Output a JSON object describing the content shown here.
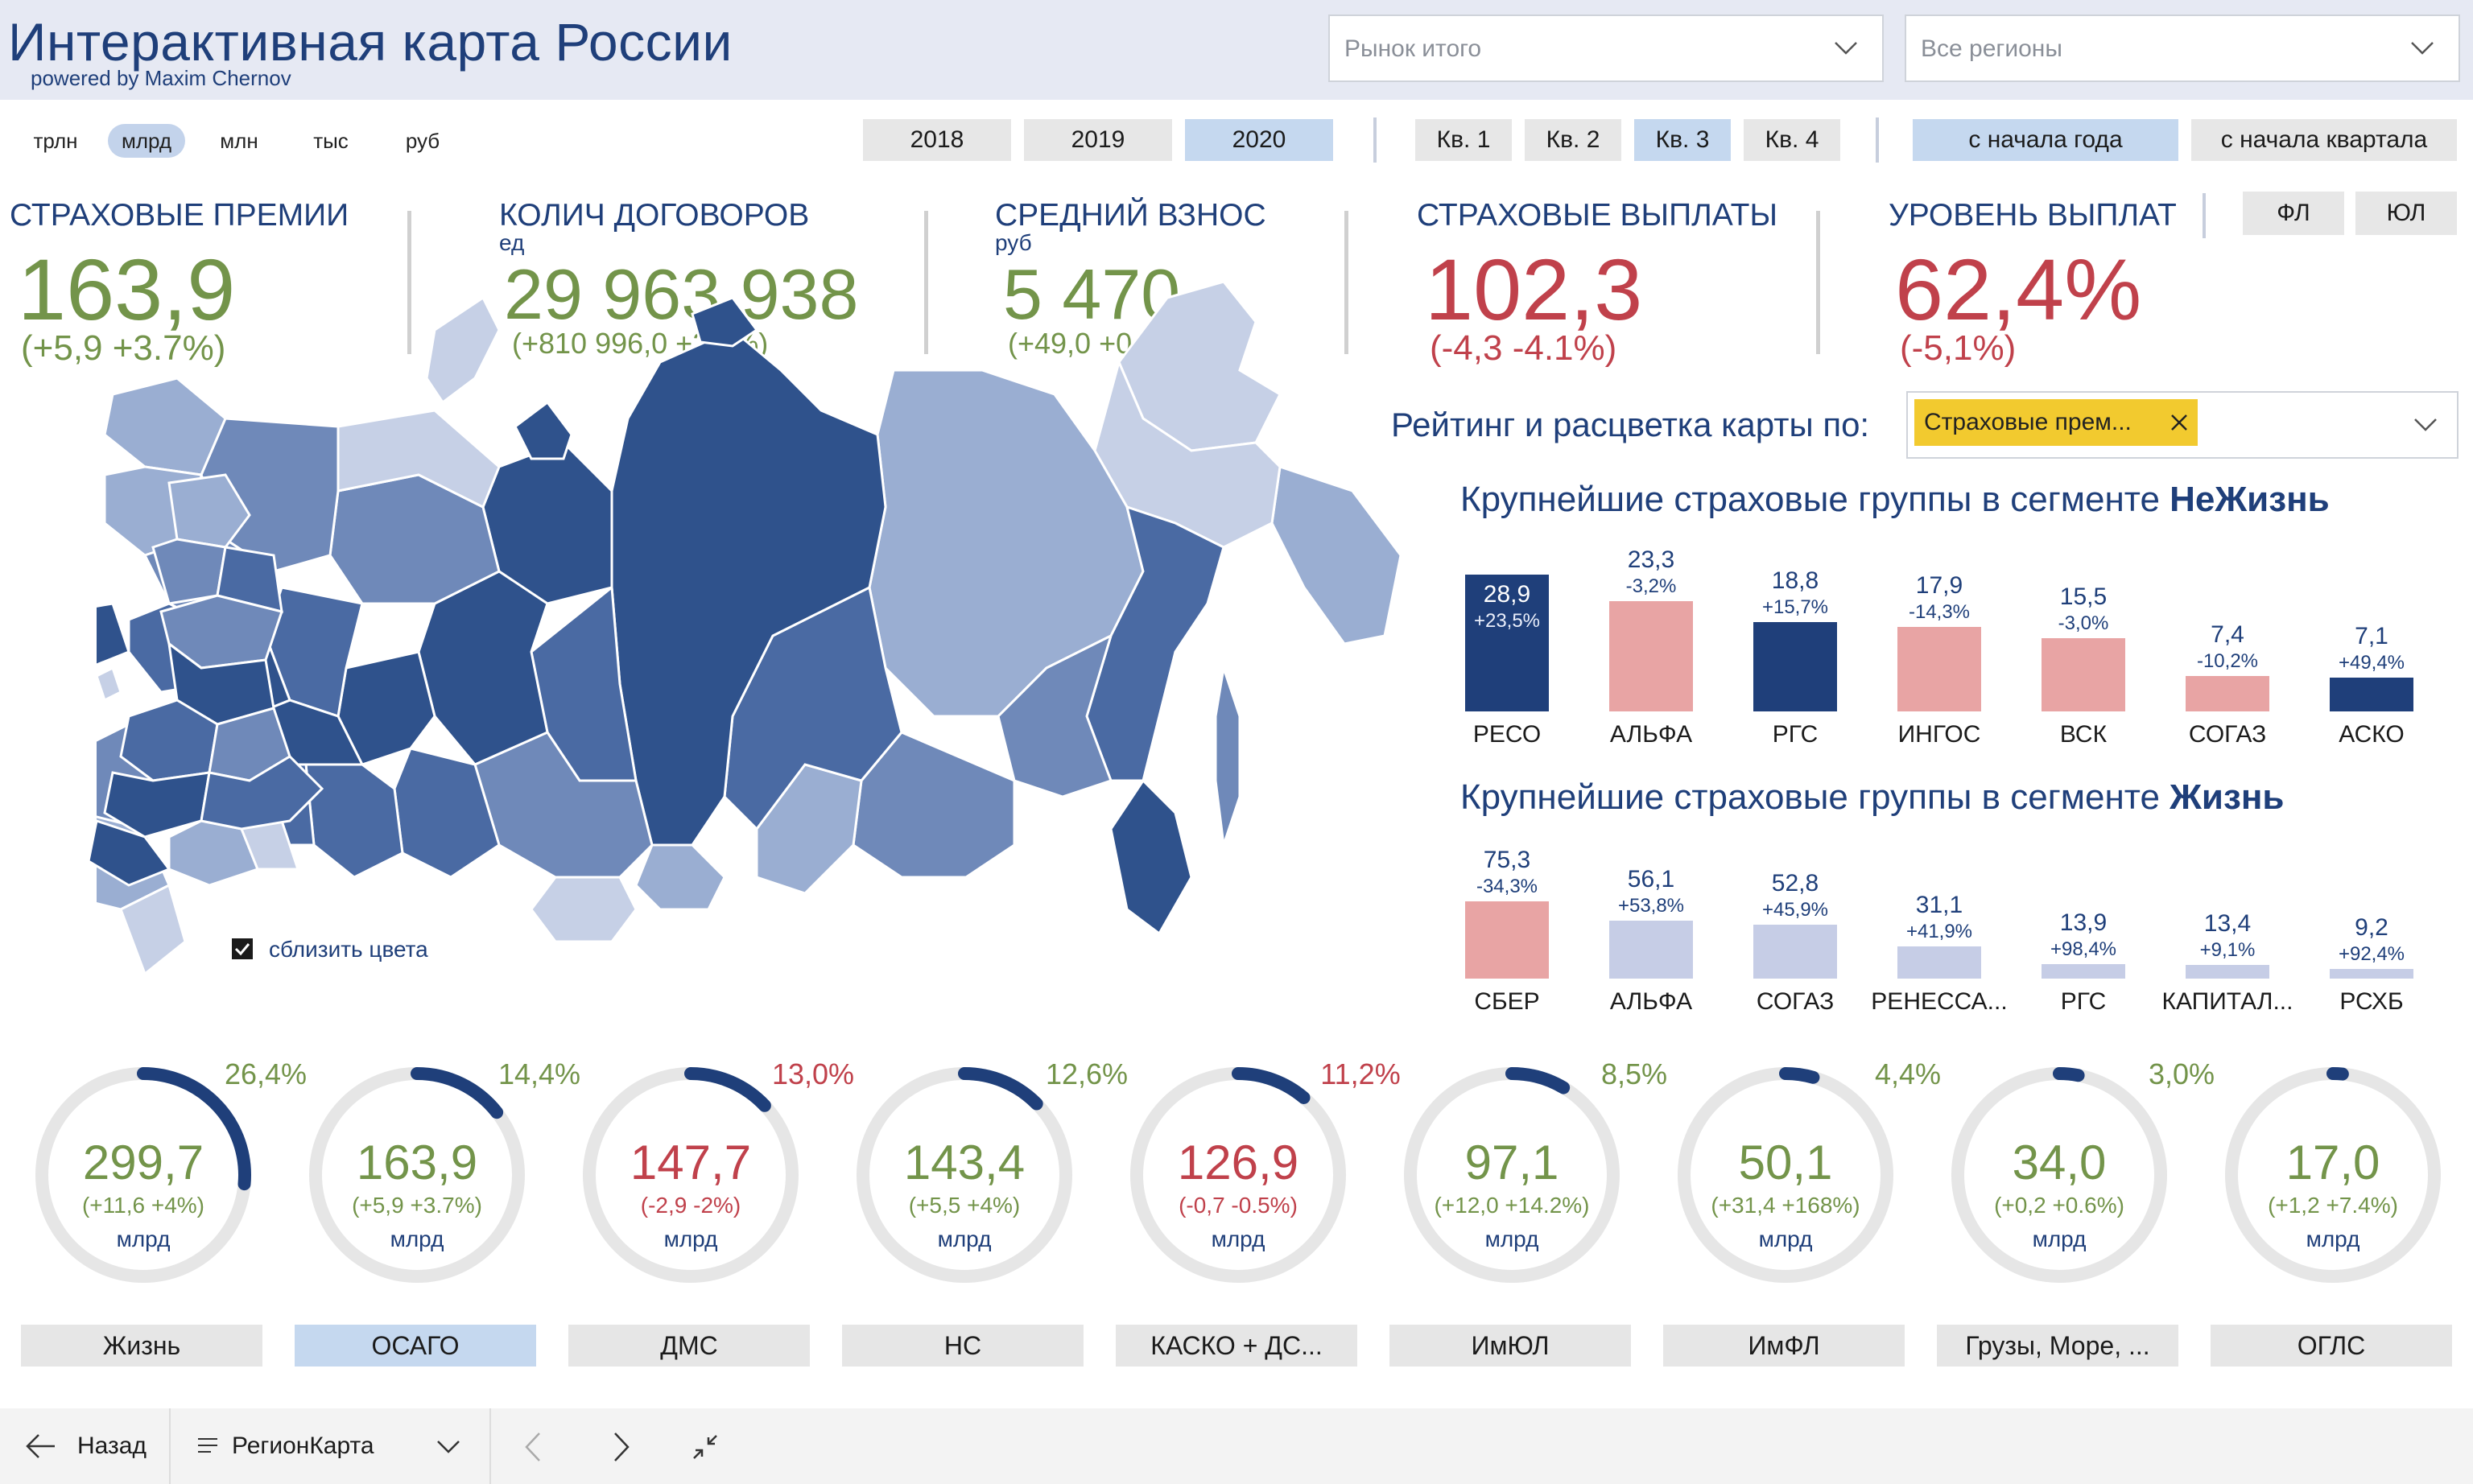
{
  "header": {
    "title": "Интерактивная карта России",
    "subtitle": "powered by Maxim Chernov",
    "market_dropdown": "Рынок итого",
    "region_dropdown": "Все регионы"
  },
  "units": [
    {
      "label": "трлн",
      "active": false
    },
    {
      "label": "млрд",
      "active": true
    },
    {
      "label": "млн",
      "active": false
    },
    {
      "label": "тыс",
      "active": false
    },
    {
      "label": "руб",
      "active": false
    }
  ],
  "years": [
    {
      "label": "2018",
      "active": false
    },
    {
      "label": "2019",
      "active": false
    },
    {
      "label": "2020",
      "active": true
    }
  ],
  "quarters": [
    {
      "label": "Кв. 1",
      "active": false
    },
    {
      "label": "Кв. 2",
      "active": false
    },
    {
      "label": "Кв. 3",
      "active": true
    },
    {
      "label": "Кв. 4",
      "active": false
    }
  ],
  "periods": [
    {
      "label": "с начала года",
      "active": true
    },
    {
      "label": "с начала квартала",
      "active": false
    }
  ],
  "client_type": [
    {
      "label": "ФЛ"
    },
    {
      "label": "ЮЛ"
    }
  ],
  "kpis": {
    "premiums": {
      "label": "СТРАХОВЫЕ ПРЕМИИ",
      "value": "163,9",
      "delta": "(+5,9 +3.7%)"
    },
    "contracts": {
      "label": "КОЛИЧ ДОГОВОРОВ",
      "unit": "ед",
      "value": "29 963 938",
      "delta": "(+810 996,0 +2.8%)"
    },
    "avg": {
      "label": "СРЕДНИЙ ВЗНОС",
      "unit": "руб",
      "value": "5 470",
      "delta": "(+49,0 +0.9%)"
    },
    "payouts": {
      "label": "СТРАХОВЫЕ ВЫПЛАТЫ",
      "value": "102,3",
      "delta": "(-4,3 -4.1%)"
    },
    "ratio": {
      "label": "УРОВЕНЬ ВЫПЛАТ",
      "value": "62,4%",
      "delta": "(-5,1%)"
    }
  },
  "map": {
    "checkbox_label": "сблизить цвета",
    "checked": true,
    "colors": {
      "darkest": "#2f528c",
      "dark": "#4a6aa3",
      "mid": "#6f89b9",
      "light": "#9aaed2",
      "lightest": "#c6d0e6"
    }
  },
  "rating": {
    "label": "Рейтинг и расцветка карты по:",
    "chip": "Страховые прем..."
  },
  "nonlife": {
    "title_prefix": "Крупнейшие страховые группы в сегменте ",
    "title_bold": "НеЖизнь",
    "chart_data": {
      "type": "bar",
      "categories": [
        "РЕСО",
        "АЛЬФА",
        "РГС",
        "ИНГОС",
        "ВСК",
        "СОГАЗ",
        "АСКО"
      ],
      "values": [
        28.9,
        23.3,
        18.8,
        17.9,
        15.5,
        7.4,
        7.1
      ],
      "value_labels": [
        "28,9",
        "23,3",
        "18,8",
        "17,9",
        "15,5",
        "7,4",
        "7,1"
      ],
      "delta_labels": [
        "+23,5%",
        "-3,2%",
        "+15,7%",
        "-14,3%",
        "-3,0%",
        "-10,2%",
        "+49,4%"
      ],
      "colors": [
        "#1f3f7a",
        "#e8a4a4",
        "#1f3f7a",
        "#e8a4a4",
        "#e8a4a4",
        "#e8a4a4",
        "#1f3f7a"
      ],
      "label_inside": [
        true,
        false,
        false,
        false,
        false,
        false,
        false
      ]
    }
  },
  "life": {
    "title_prefix": "Крупнейшие страховые группы в сегменте ",
    "title_bold": "Жизнь",
    "chart_data": {
      "type": "bar",
      "categories": [
        "СБЕР",
        "АЛЬФА",
        "СОГАЗ",
        "РЕНЕССА...",
        "РГС",
        "КАПИТАЛ...",
        "РСХБ"
      ],
      "values": [
        75.3,
        56.1,
        52.8,
        31.1,
        13.9,
        13.4,
        9.2
      ],
      "value_labels": [
        "75,3",
        "56,1",
        "52,8",
        "31,1",
        "13,9",
        "13,4",
        "9,2"
      ],
      "delta_labels": [
        "-34,3%",
        "+53,8%",
        "+45,9%",
        "+41,9%",
        "+98,4%",
        "+9,1%",
        "+92,4%"
      ],
      "colors": [
        "#e8a4a4",
        "#c6cde6",
        "#c6cde6",
        "#c6cde6",
        "#c6cde6",
        "#c6cde6",
        "#c6cde6"
      ]
    }
  },
  "segments": [
    {
      "name": "Жизнь",
      "value": "299,7",
      "delta": "(+11,6 +4%)",
      "unit": "млрд",
      "share": "26,4%",
      "fraction": 0.264,
      "positive": true,
      "active": false
    },
    {
      "name": "ОСАГО",
      "value": "163,9",
      "delta": "(+5,9 +3.7%)",
      "unit": "млрд",
      "share": "14,4%",
      "fraction": 0.144,
      "positive": true,
      "active": true
    },
    {
      "name": "ДМС",
      "value": "147,7",
      "delta": "(-2,9 -2%)",
      "unit": "млрд",
      "share": "13,0%",
      "fraction": 0.13,
      "positive": false,
      "active": false
    },
    {
      "name": "НС",
      "value": "143,4",
      "delta": "(+5,5 +4%)",
      "unit": "млрд",
      "share": "12,6%",
      "fraction": 0.126,
      "positive": true,
      "active": false
    },
    {
      "name": "КАСКО + ДС...",
      "value": "126,9",
      "delta": "(-0,7 -0.5%)",
      "unit": "млрд",
      "share": "11,2%",
      "fraction": 0.112,
      "positive": false,
      "active": false
    },
    {
      "name": "ИмЮЛ",
      "value": "97,1",
      "delta": "(+12,0 +14.2%)",
      "unit": "млрд",
      "share": "8,5%",
      "fraction": 0.085,
      "positive": true,
      "active": false
    },
    {
      "name": "ИмФЛ",
      "value": "50,1",
      "delta": "(+31,4 +168%)",
      "unit": "млрд",
      "share": "4,4%",
      "fraction": 0.044,
      "positive": true,
      "active": false
    },
    {
      "name": "Грузы, Море, ...",
      "value": "34,0",
      "delta": "(+0,2 +0.6%)",
      "unit": "млрд",
      "share": "3,0%",
      "fraction": 0.03,
      "positive": true,
      "active": false
    },
    {
      "name": "ОГЛС",
      "value": "17,0",
      "delta": "(+1,2 +7.4%)",
      "unit": "млрд",
      "share": "",
      "fraction": 0.015,
      "positive": true,
      "active": false
    }
  ],
  "footer": {
    "back_label": "Назад",
    "page_label": "РегионКарта"
  }
}
